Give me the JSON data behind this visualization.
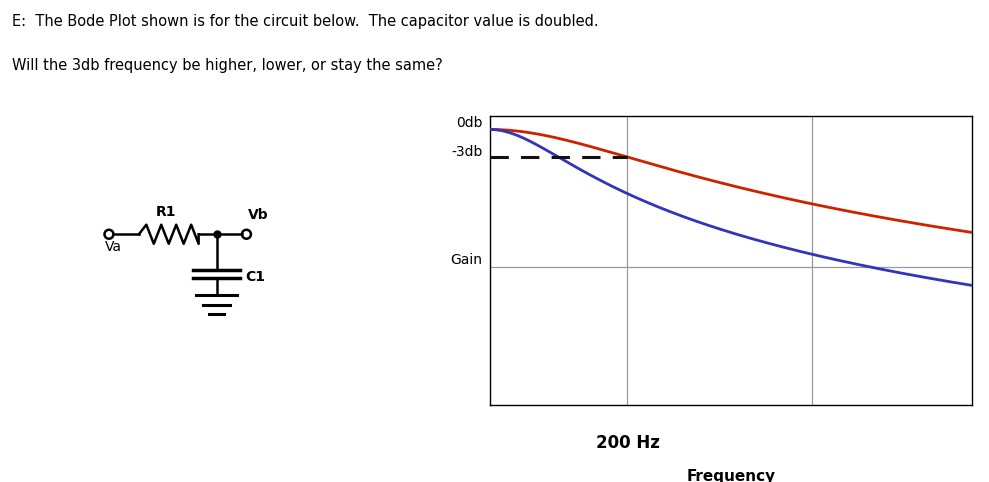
{
  "title_line1": "E:  The Bode Plot shown is for the circuit below.  The capacitor value is doubled.",
  "title_line2": "Will the 3db frequency be higher, lower, or stay the same?",
  "background_color": "#ffffff",
  "plot_bg_color": "#ffffff",
  "grid_color": "#999999",
  "f3db_original": 200,
  "f3db_new": 100,
  "ylabel_0db": "0db",
  "ylabel_3db": "-3db",
  "ylabel_gain": "Gain",
  "xlabel": "Frequency",
  "x200hz_label": "200 Hz",
  "line_color_original": "#cc2200",
  "line_color_new": "#3333bb",
  "dashed_line_color": "#111111",
  "circuit_Va": "Va",
  "circuit_Vb": "Vb",
  "circuit_R1": "R1",
  "circuit_C1": "C1"
}
